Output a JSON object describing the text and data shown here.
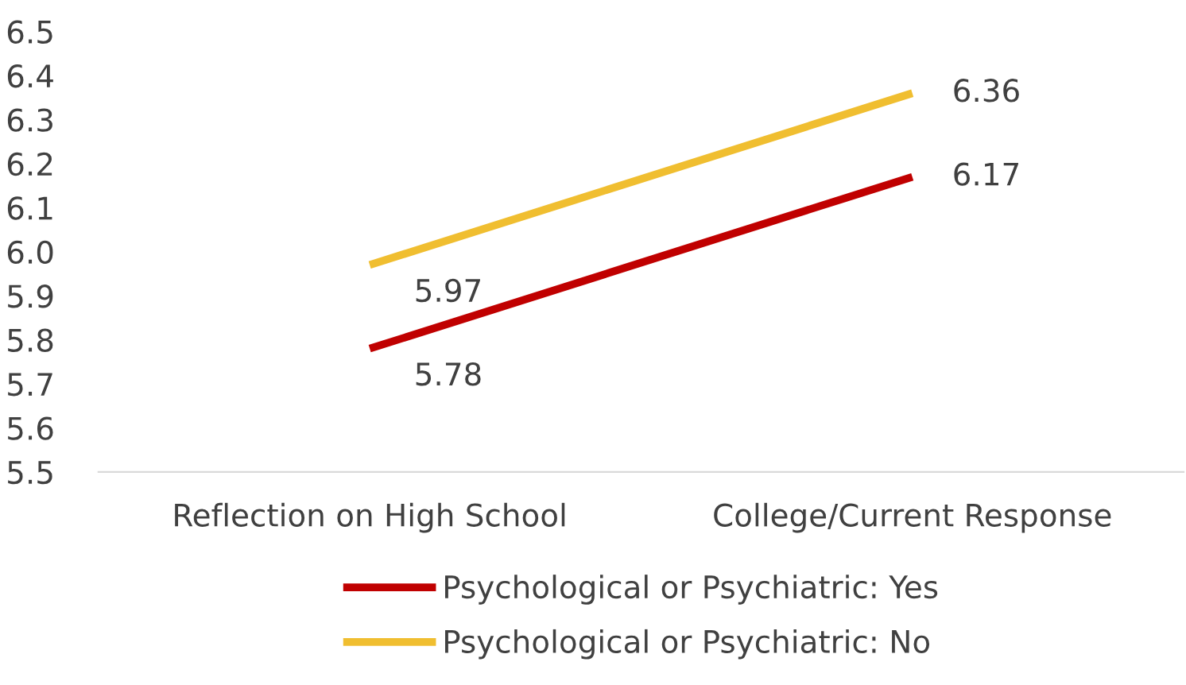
{
  "chart_data": {
    "type": "line",
    "categories": [
      "Reflection on High School",
      "College/Current Response"
    ],
    "series": [
      {
        "name": "Psychological or Psychiatric: Yes",
        "color": "#c00000",
        "values": [
          5.78,
          6.17
        ]
      },
      {
        "name": "Psychological or Psychiatric: No",
        "color": "#f0be30",
        "values": [
          5.97,
          6.36
        ]
      }
    ],
    "ylim": [
      5.5,
      6.5
    ],
    "yticks": [
      5.5,
      5.6,
      5.7,
      5.8,
      5.9,
      {
        "value": 6,
        "label": "6.0"
      },
      6.1,
      6.2,
      6.3,
      6.4,
      6.5
    ],
    "data_labels": true,
    "legend": "bottom",
    "grid": false,
    "marker": "none",
    "line_style": "solid"
  }
}
